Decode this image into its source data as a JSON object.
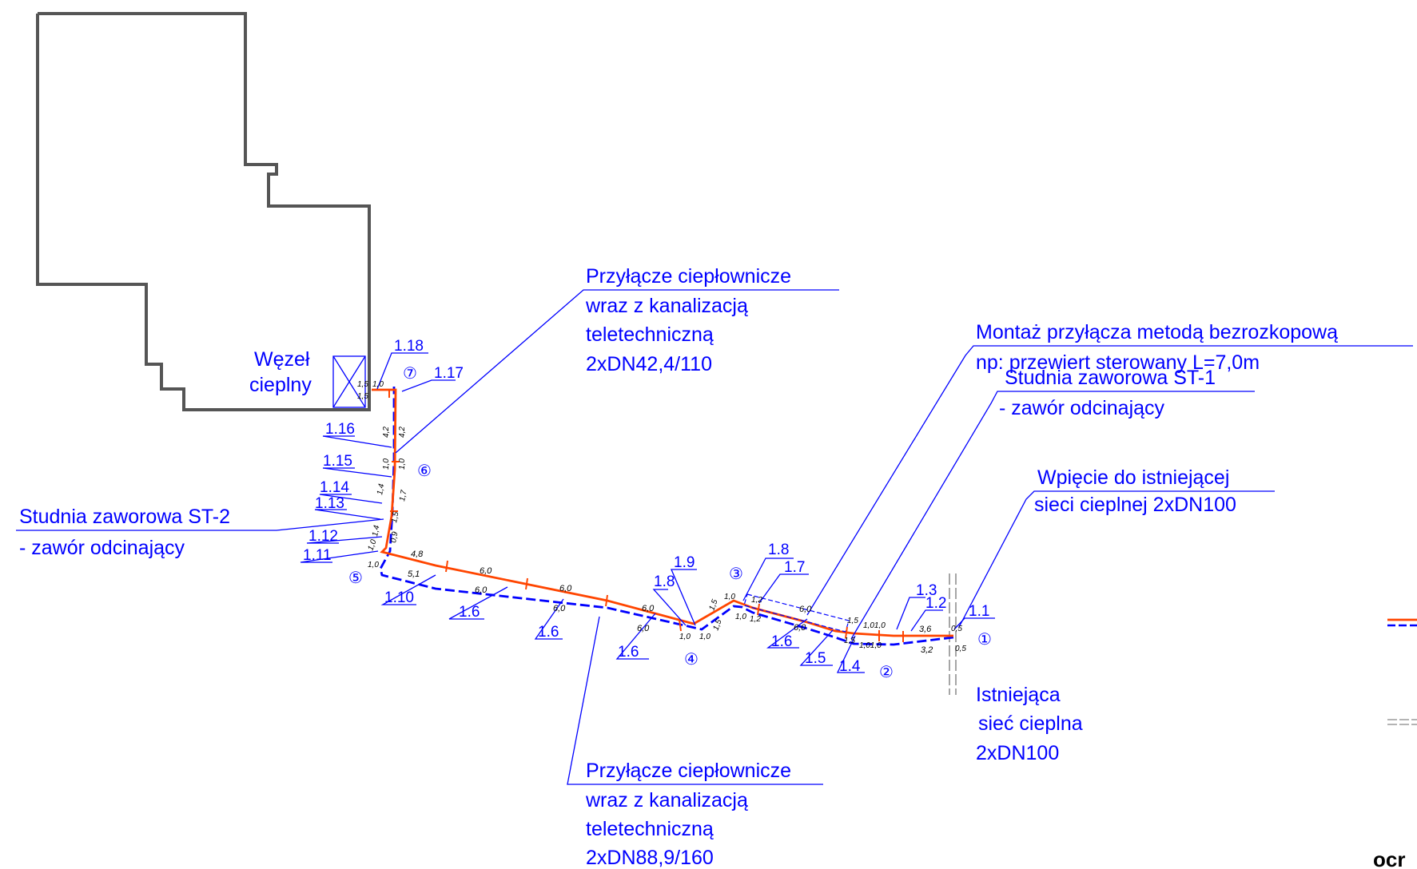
{
  "building": {
    "node_label_1": "Węzeł",
    "node_label_2": "cieplny"
  },
  "callouts": {
    "top_connection": [
      "Przyłącze ciepłownicze",
      "wraz  z kanalizacją",
      "teletechniczną",
      "2xDN42,4/110"
    ],
    "bottom_connection": [
      "Przyłącze ciepłownicze",
      "wraz  z kanalizacją",
      "teletechniczną",
      "2xDN88,9/160"
    ],
    "trenchless": [
      "Montaż przyłącza metodą bezrozkopową",
      "np: przewiert sterowany L=7,0m"
    ],
    "valve_st1": [
      "Studnia zaworowa ST-1",
      "- zawór odcinający"
    ],
    "valve_st2": [
      "Studnia zaworowa ST-2",
      "- zawór odcinający"
    ],
    "tie_in": [
      "Wpięcie do istniejącej",
      "sieci cieplnej 2xDN100"
    ],
    "existing_network": [
      "Istniejąca",
      "sieć cieplna",
      "2xDN100"
    ]
  },
  "section_labels": {
    "s1_18": "1.18",
    "s1_17": "1.17",
    "s1_16": "1.16",
    "s1_15": "1.15",
    "s1_14": "1.14",
    "s1_13": "1.13",
    "s1_12": "1.12",
    "s1_11": "1.11",
    "s1_10": "1.10",
    "s1_6a": "1.6",
    "s1_6b": "1.6",
    "s1_6c": "1.6",
    "s1_6d": "1.6",
    "s1_9": "1.9",
    "s1_8a": "1.8",
    "s1_8b": "1.8",
    "s1_7": "1.7",
    "s1_5": "1.5",
    "s1_4": "1.4",
    "s1_3": "1.3",
    "s1_2": "1.2",
    "s1_1": "1.1"
  },
  "node_markers": [
    "①",
    "②",
    "③",
    "④",
    "⑤",
    "⑥",
    "⑦"
  ],
  "dimensions": {
    "d_4_8": "4,8",
    "d_5_1": "5,1",
    "d_6_0": "6,0",
    "d_3_6": "3,6",
    "d_3_2": "3,2",
    "d_0_5": "0,5",
    "d_1_0": "1,0",
    "d_1_5": "1,5",
    "d_4_2": "4,2",
    "d_1_2": "1,2",
    "d_1_4": "1,4",
    "d_0_9": "0,9",
    "d_1_7": "1,7",
    "d_1_01": "1,01,0"
  },
  "colors": {
    "supply_pipe": "#ff4500",
    "return_pipe": "#0000ff",
    "labels": "#0000ff",
    "building_outline": "#555555",
    "existing_network": "#888888"
  },
  "legend_fragment": "ocr"
}
